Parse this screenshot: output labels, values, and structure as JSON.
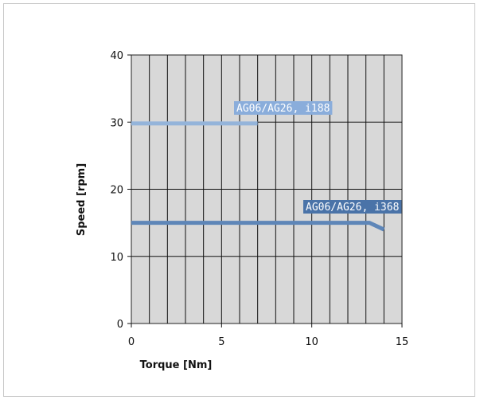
{
  "chart_data": {
    "type": "line",
    "title": "",
    "xlabel": "Torque [Nm]",
    "ylabel": "Speed [rpm]",
    "xlim": [
      0,
      15
    ],
    "ylim": [
      0,
      40
    ],
    "xticks": [
      0,
      5,
      10,
      15
    ],
    "yticks": [
      0,
      10,
      20,
      30,
      40
    ],
    "x_minor_step": 1,
    "y_major_step": 10,
    "grid": true,
    "plot_background": "#d8d8d8",
    "series": [
      {
        "name": "AG06/AG26, i188",
        "color": "#94b4da",
        "label_background": "#8aaddb",
        "x": [
          0,
          7
        ],
        "y": [
          29.8,
          29.8
        ]
      },
      {
        "name": "AG06/AG26, i368",
        "color": "#5e86b8",
        "label_background": "#4a73a8",
        "x": [
          0,
          13.2,
          14
        ],
        "y": [
          15,
          15,
          14
        ]
      }
    ]
  }
}
